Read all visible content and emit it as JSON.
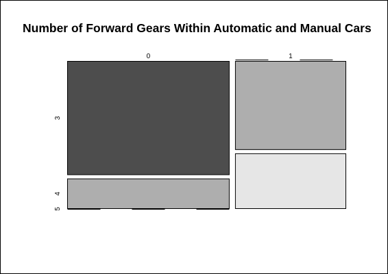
{
  "chart_data": {
    "type": "mosaic",
    "title": "Number of Forward Gears Within Automatic and Manual Cars",
    "x_variable_levels": [
      "0",
      "1"
    ],
    "y_variable_levels": [
      "3",
      "4",
      "5"
    ],
    "counts": [
      {
        "x": "0",
        "values": {
          "3": 15,
          "4": 4,
          "5": 0
        }
      },
      {
        "x": "1",
        "values": {
          "3": 0,
          "4": 8,
          "5": 5
        }
      }
    ],
    "colors": {
      "3": "#4d4d4d",
      "4": "#aeaeae",
      "5": "#e6e6e6"
    },
    "xlabel": "",
    "ylabel": ""
  }
}
